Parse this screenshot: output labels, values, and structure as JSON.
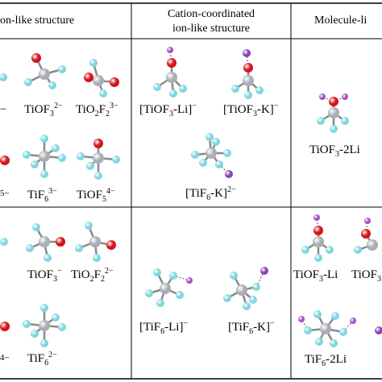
{
  "headers": {
    "col1": "on-like structure",
    "col2_line1": "Cation-coordinated",
    "col2_line2": "ion-like structure",
    "col3": "Molecule-li"
  },
  "labels": {
    "r1_tiof3": {
      "base": "TiOF",
      "sub": "3",
      "sup": "2−"
    },
    "r1_tio2f2": {
      "base": "TiO",
      "sub": "2",
      "mid": "F",
      "sub2": "2",
      "sup": "3−"
    },
    "r1_tif6": {
      "base": "TiF",
      "sub": "6",
      "sup": "3−"
    },
    "r1_tiof5": {
      "base": "TiOF",
      "sub": "5",
      "sup": "4−"
    },
    "r1_tiof3_li": {
      "pre": "[TiOF",
      "sub": "3",
      "post": "-Li]",
      "sup": "−"
    },
    "r1_tiof3_k": {
      "pre": "[TiOF",
      "sub": "3",
      "post": "-K]",
      "sup": "−"
    },
    "r1_tif6_k": {
      "pre": "[TiF",
      "sub": "6",
      "post": "-K]",
      "sup": "2−"
    },
    "r1_tiof3_2li": {
      "base": "TiOF",
      "sub": "3",
      "post": "-2Li"
    },
    "r2_tiof3": {
      "base": "TiOF",
      "sub": "3",
      "sup": "−"
    },
    "r2_tio2f2": {
      "base": "TiO",
      "sub": "2",
      "mid": "F",
      "sub2": "2",
      "sup": "2−"
    },
    "r2_tif6": {
      "base": "TiF",
      "sub": "6",
      "sup": "2−"
    },
    "r2_tif6_li": {
      "pre": "[TiF",
      "sub": "6",
      "post": "-Li]",
      "sup": "−"
    },
    "r2_tif6_k": {
      "pre": "[TiF",
      "sub": "6",
      "post": "-K]",
      "sup": "−"
    },
    "r2_tiof3_li": {
      "base": "TiOF",
      "sub": "3",
      "post": "-Li"
    },
    "r2_tiof_cut": {
      "base": "TiOF",
      "sub": "3"
    },
    "r2_tif6_2li": {
      "base": "TiF",
      "sub": "6",
      "post": "-2Li"
    },
    "edge_minus_1": "−",
    "edge_minus_2": "5−",
    "edge_minus_3": "4−"
  },
  "colors": {
    "titanium": "#a9aeb6",
    "oxygen": "#d4121b",
    "fluorine": "#7fd6e0",
    "lithium": "#a24fc4",
    "potassium": "#8a3fb8",
    "bond": "#8a8a8a"
  }
}
